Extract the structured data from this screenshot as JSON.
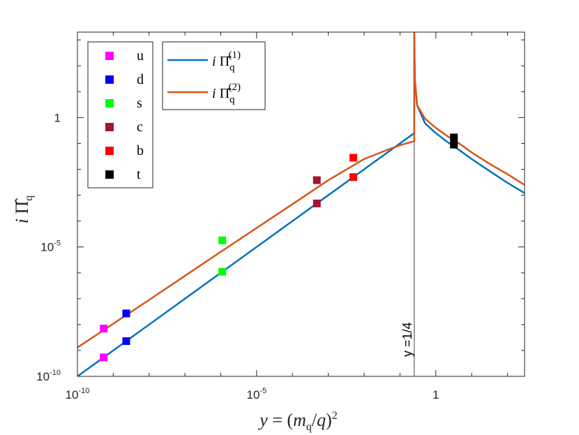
{
  "chart_data": {
    "type": "line",
    "xlabel": "y = (m_q/q)^2",
    "ylabel": "i Π̂_q",
    "xscale": "log",
    "yscale": "log",
    "xlim": [
      1e-10,
      300
    ],
    "ylim": [
      1e-10,
      2000
    ],
    "x_ticks": [
      {
        "value": 1e-10,
        "base": "10",
        "exp": "-10"
      },
      {
        "value": 1e-05,
        "base": "10",
        "exp": "-5"
      },
      {
        "value": 1,
        "base": "1",
        "exp": ""
      }
    ],
    "y_ticks": [
      {
        "value": 1e-10,
        "base": "10",
        "exp": "-10"
      },
      {
        "value": 1e-05,
        "base": "10",
        "exp": "-5"
      },
      {
        "value": 1,
        "base": "1",
        "exp": ""
      }
    ],
    "series": [
      {
        "name": "i Π̂_q^(1)",
        "legend_label": "(1)",
        "color": "#0072bd",
        "x": [
          1e-10,
          1e-08,
          1e-06,
          0.0001,
          0.001,
          0.01,
          0.05,
          0.1,
          0.15,
          0.2,
          0.24,
          0.2499,
          0.2501,
          0.26,
          0.3,
          0.5,
          1,
          2,
          5,
          10,
          30,
          100,
          300
        ],
        "y": [
          1e-10,
          1e-08,
          1e-06,
          0.0001,
          0.001,
          0.01,
          0.05,
          0.1,
          0.15,
          0.2,
          0.24,
          0.2499,
          2000,
          30,
          3,
          0.6,
          0.25,
          0.12,
          0.05,
          0.025,
          0.009,
          0.003,
          0.0012
        ]
      },
      {
        "name": "i Π̂_q^(2)",
        "legend_label": "(2)",
        "color": "#d95319",
        "x": [
          1e-10,
          1e-08,
          1e-06,
          0.0001,
          0.001,
          0.01,
          0.05,
          0.1,
          0.15,
          0.2,
          0.24,
          0.2499,
          0.2501,
          0.26,
          0.3,
          0.5,
          1,
          2,
          5,
          10,
          30,
          100,
          300
        ],
        "y": [
          1.3e-09,
          9e-08,
          6.5e-06,
          0.00045,
          0.0038,
          0.025,
          0.06,
          0.085,
          0.1,
          0.113,
          0.12,
          0.122,
          2000,
          30,
          3,
          0.9,
          0.4,
          0.2,
          0.09,
          0.045,
          0.017,
          0.0065,
          0.0025
        ]
      }
    ],
    "quarks": [
      {
        "name": "u",
        "color": "#ff00ff",
        "x": 5.4e-10,
        "y1": 5.4e-10,
        "y2": 7e-09
      },
      {
        "name": "d",
        "color": "#0000ff",
        "x": 2.3e-09,
        "y1": 2.3e-09,
        "y2": 2.7e-08
      },
      {
        "name": "s",
        "color": "#00ff00",
        "x": 1.1e-06,
        "y1": 1.1e-06,
        "y2": 1.8e-05
      },
      {
        "name": "c",
        "color": "#a2142f",
        "x": 0.00048,
        "y1": 0.00048,
        "y2": 0.0038
      },
      {
        "name": "b",
        "color": "#ff0000",
        "x": 0.005,
        "y1": 0.005,
        "y2": 0.028
      },
      {
        "name": "t",
        "color": "#000000",
        "x": 3.2,
        "y1": 0.09,
        "y2": 0.17
      }
    ],
    "vline": {
      "x": 0.25,
      "label": "y =1/4",
      "color": "#7f7f7f"
    },
    "legend_quarks_placement": "top-left",
    "legend_series_placement": "top-left"
  }
}
